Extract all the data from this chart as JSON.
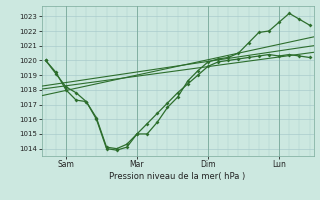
{
  "title": "Pression niveau de la mer( hPa )",
  "bg_color": "#cce8e0",
  "grid_color": "#aacccc",
  "line_color": "#2d6e2d",
  "yticks": [
    1014,
    1015,
    1016,
    1017,
    1018,
    1019,
    1020,
    1021,
    1022,
    1023
  ],
  "ylim": [
    1013.5,
    1023.7
  ],
  "xtick_labels": [
    "Sam",
    "Mar",
    "Dim",
    "Lun"
  ],
  "xtick_pos": [
    1.0,
    4.5,
    8.0,
    11.5
  ],
  "xlim": [
    -0.2,
    13.2
  ],
  "trend_lines": [
    {
      "x0": -0.2,
      "y0": 1018.05,
      "x1": 13.2,
      "y1": 1020.55
    },
    {
      "x0": -0.2,
      "y0": 1018.25,
      "x1": 13.2,
      "y1": 1021.0
    },
    {
      "x0": -0.2,
      "y0": 1017.6,
      "x1": 13.2,
      "y1": 1021.6
    }
  ],
  "curve1_x": [
    0,
    0.5,
    1.0,
    1.5,
    2.0,
    2.5,
    3.0,
    3.5,
    4.0,
    4.5,
    5.0,
    5.5,
    6.0,
    6.5,
    7.0,
    7.5,
    8.0,
    8.5,
    9.0,
    9.5,
    10.0,
    10.5,
    11.0,
    11.5,
    12.0,
    12.5,
    13.0
  ],
  "curve1_y": [
    1020.0,
    1019.1,
    1018.2,
    1017.8,
    1017.2,
    1016.1,
    1014.1,
    1014.0,
    1014.3,
    1015.0,
    1015.7,
    1016.4,
    1017.1,
    1017.8,
    1018.4,
    1019.0,
    1019.6,
    1019.9,
    1020.0,
    1020.1,
    1020.2,
    1020.3,
    1020.4,
    1020.3,
    1020.4,
    1020.3,
    1020.2
  ],
  "curve2_x": [
    0,
    0.5,
    1.0,
    1.5,
    2.0,
    2.5,
    3.0,
    3.5,
    4.0,
    4.5,
    5.0,
    5.5,
    6.0,
    6.5,
    7.0,
    7.5,
    8.0,
    8.5,
    9.0,
    9.5,
    10.0,
    10.5,
    11.0,
    11.5,
    12.0,
    12.5,
    13.0
  ],
  "curve2_y": [
    1020.0,
    1019.2,
    1018.0,
    1017.3,
    1017.2,
    1016.0,
    1014.0,
    1013.9,
    1014.1,
    1015.0,
    1015.0,
    1015.8,
    1016.8,
    1017.5,
    1018.6,
    1019.3,
    1019.9,
    1020.1,
    1020.2,
    1020.5,
    1021.2,
    1021.9,
    1022.0,
    1022.6,
    1023.2,
    1022.8,
    1022.4
  ]
}
